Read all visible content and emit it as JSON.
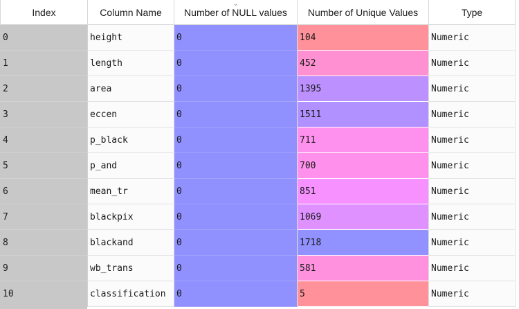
{
  "table": {
    "columns": [
      {
        "label": "Index"
      },
      {
        "label": "Column Name"
      },
      {
        "label": "Number of NULL values"
      },
      {
        "label": "Number of Unique Values"
      },
      {
        "label": "Type"
      }
    ],
    "sort_indicator": "⌄",
    "rows": [
      {
        "index": "0",
        "name": "height",
        "nulls": "0",
        "unique": "104",
        "type": "Numeric",
        "unique_color": "#ff919b"
      },
      {
        "index": "1",
        "name": "length",
        "nulls": "0",
        "unique": "452",
        "type": "Numeric",
        "unique_color": "#ff91d2"
      },
      {
        "index": "2",
        "name": "area",
        "nulls": "0",
        "unique": "1395",
        "type": "Numeric",
        "unique_color": "#bc91ff"
      },
      {
        "index": "3",
        "name": "eccen",
        "nulls": "0",
        "unique": "1511",
        "type": "Numeric",
        "unique_color": "#b191ff"
      },
      {
        "index": "4",
        "name": "p_black",
        "nulls": "0",
        "unique": "711",
        "type": "Numeric",
        "unique_color": "#ff91ee"
      },
      {
        "index": "5",
        "name": "p_and",
        "nulls": "0",
        "unique": "700",
        "type": "Numeric",
        "unique_color": "#ff91ec"
      },
      {
        "index": "6",
        "name": "mean_tr",
        "nulls": "0",
        "unique": "851",
        "type": "Numeric",
        "unique_color": "#f791ff"
      },
      {
        "index": "7",
        "name": "blackpix",
        "nulls": "0",
        "unique": "1069",
        "type": "Numeric",
        "unique_color": "#de91ff"
      },
      {
        "index": "8",
        "name": "blackand",
        "nulls": "0",
        "unique": "1718",
        "type": "Numeric",
        "unique_color": "#9191ff"
      },
      {
        "index": "9",
        "name": "wb_trans",
        "nulls": "0",
        "unique": "581",
        "type": "Numeric",
        "unique_color": "#ff91df"
      },
      {
        "index": "10",
        "name": "classification",
        "nulls": "0",
        "unique": "5",
        "type": "Numeric",
        "unique_color": "#ff919b"
      }
    ]
  }
}
